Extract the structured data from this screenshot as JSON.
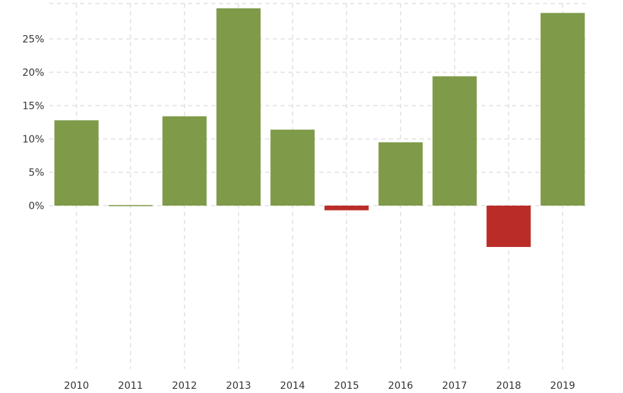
{
  "chart_data": {
    "type": "bar",
    "title": "",
    "xlabel": "",
    "ylabel": "",
    "categories": [
      "2010",
      "2011",
      "2012",
      "2013",
      "2014",
      "2015",
      "2016",
      "2017",
      "2018",
      "2019"
    ],
    "values": [
      12.8,
      0.0,
      13.4,
      29.6,
      11.4,
      -0.7,
      9.5,
      19.4,
      -6.2,
      28.9
    ],
    "y_ticks": [
      0,
      5,
      10,
      15,
      20,
      25
    ],
    "y_tick_labels": [
      "0%",
      "5%",
      "10%",
      "15%",
      "20%",
      "25%"
    ],
    "ylim": [
      -24.5,
      30
    ],
    "grid": true,
    "colors": {
      "positive": "#7f9a48",
      "negative": "#b92c28",
      "grid": "#e0e0e0",
      "text": "#333333"
    }
  }
}
